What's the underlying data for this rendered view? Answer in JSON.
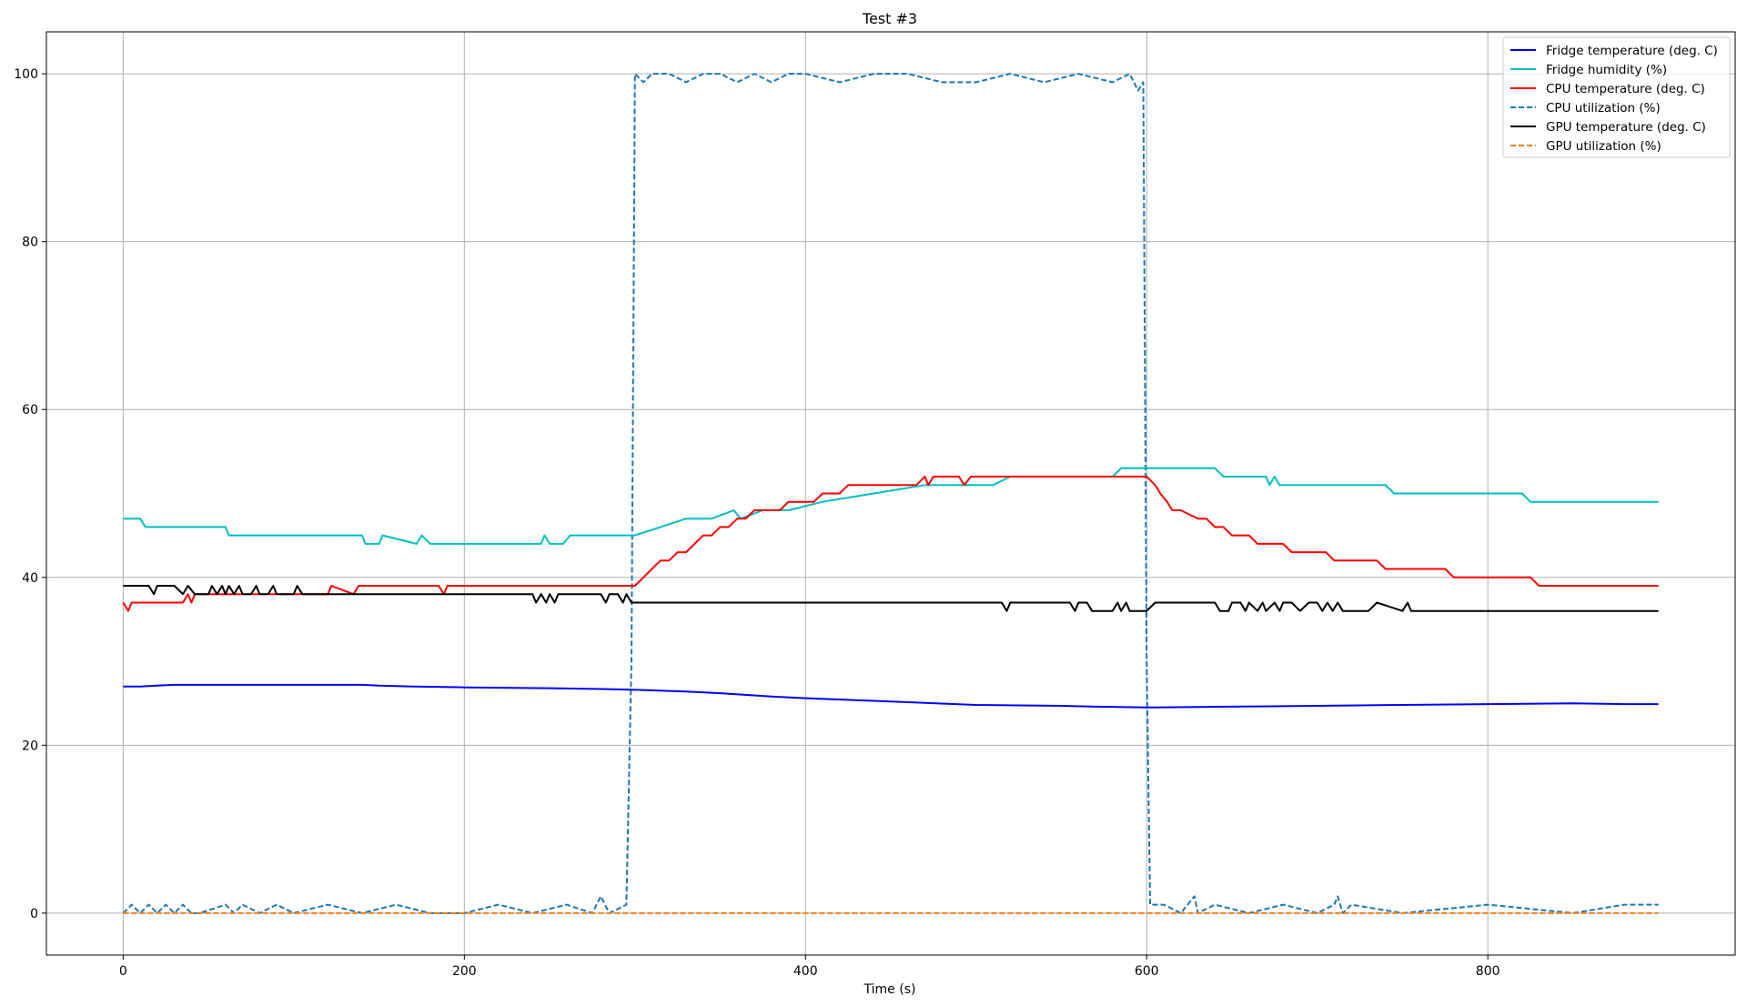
{
  "chart_data": {
    "type": "line",
    "title": "Test #3",
    "xlabel": "Time (s)",
    "ylabel": "",
    "xlim": [
      -45,
      945
    ],
    "ylim": [
      -5,
      105
    ],
    "xticks": [
      0,
      200,
      400,
      600,
      800
    ],
    "yticks": [
      0,
      20,
      40,
      60,
      80,
      100
    ],
    "grid": true,
    "legend_position": "top-right",
    "series": [
      {
        "name": "Fridge temperature (deg. C)",
        "color": "#0000ff",
        "dash": "solid",
        "x": [
          0,
          10,
          20,
          30,
          60,
          100,
          140,
          150,
          170,
          200,
          250,
          280,
          300,
          330,
          350,
          380,
          400,
          450,
          500,
          550,
          570,
          600,
          650,
          700,
          750,
          800,
          850,
          880,
          900
        ],
        "y": [
          27,
          27,
          27.1,
          27.2,
          27.2,
          27.2,
          27.2,
          27.1,
          27,
          26.9,
          26.8,
          26.7,
          26.6,
          26.4,
          26.2,
          25.8,
          25.6,
          25.2,
          24.8,
          24.7,
          24.6,
          24.5,
          24.6,
          24.7,
          24.8,
          24.9,
          25,
          24.9,
          24.9
        ]
      },
      {
        "name": "Fridge humidity (%)",
        "color": "#00bfbf",
        "dash": "solid",
        "x": [
          0,
          10,
          13,
          60,
          62,
          140,
          142,
          150,
          152,
          172,
          175,
          180,
          245,
          247,
          250,
          258,
          262,
          300,
          315,
          330,
          345,
          358,
          362,
          375,
          390,
          410,
          440,
          470,
          510,
          520,
          580,
          585,
          640,
          645,
          670,
          672,
          675,
          678,
          740,
          745,
          820,
          825,
          900
        ],
        "y": [
          47,
          47,
          46,
          46,
          45,
          45,
          44,
          44,
          45,
          44,
          45,
          44,
          44,
          45,
          44,
          44,
          45,
          45,
          46,
          47,
          47,
          48,
          47,
          48,
          48,
          49,
          50,
          51,
          51,
          52,
          52,
          53,
          53,
          52,
          52,
          51,
          52,
          51,
          51,
          50,
          50,
          49,
          49
        ]
      },
      {
        "name": "CPU temperature (deg. C)",
        "color": "#ff0000",
        "dash": "solid",
        "x": [
          0,
          3,
          5,
          35,
          38,
          40,
          42,
          120,
          122,
          135,
          138,
          140,
          160,
          162,
          185,
          188,
          190,
          300,
          305,
          310,
          315,
          320,
          325,
          330,
          335,
          340,
          345,
          350,
          355,
          360,
          365,
          370,
          375,
          380,
          385,
          390,
          395,
          400,
          405,
          410,
          415,
          420,
          425,
          430,
          465,
          470,
          472,
          475,
          480,
          490,
          493,
          497,
          500,
          600,
          605,
          608,
          612,
          615,
          620,
          630,
          635,
          640,
          645,
          650,
          660,
          665,
          680,
          685,
          705,
          710,
          735,
          740,
          775,
          780,
          825,
          830,
          900
        ],
        "y": [
          37,
          36,
          37,
          37,
          38,
          37,
          38,
          38,
          39,
          38,
          39,
          39,
          39,
          39,
          39,
          38,
          39,
          39,
          40,
          41,
          42,
          42,
          43,
          43,
          44,
          45,
          45,
          46,
          46,
          47,
          47,
          48,
          48,
          48,
          48,
          49,
          49,
          49,
          49,
          50,
          50,
          50,
          51,
          51,
          51,
          52,
          51,
          52,
          52,
          52,
          51,
          52,
          52,
          52,
          51,
          50,
          49,
          48,
          48,
          47,
          47,
          46,
          46,
          45,
          45,
          44,
          44,
          43,
          43,
          42,
          42,
          41,
          41,
          40,
          40,
          39,
          39
        ]
      },
      {
        "name": "CPU utilization (%)",
        "color": "#1f77b4",
        "dash": "dashed",
        "x": [
          0,
          5,
          10,
          15,
          20,
          25,
          30,
          35,
          40,
          45,
          60,
          65,
          70,
          80,
          90,
          100,
          120,
          140,
          160,
          180,
          200,
          220,
          240,
          260,
          275,
          280,
          285,
          295,
          298,
          300,
          305,
          310,
          320,
          330,
          340,
          350,
          360,
          370,
          380,
          390,
          400,
          420,
          440,
          460,
          480,
          500,
          520,
          540,
          560,
          580,
          590,
          595,
          598,
          600,
          602,
          610,
          620,
          628,
          630,
          640,
          660,
          680,
          700,
          710,
          712,
          715,
          720,
          750,
          800,
          850,
          880,
          900
        ],
        "y": [
          0,
          1,
          0,
          1,
          0,
          1,
          0,
          1,
          0,
          0,
          1,
          0,
          1,
          0,
          1,
          0,
          1,
          0,
          1,
          0,
          0,
          1,
          0,
          1,
          0,
          2,
          0,
          1,
          30,
          100,
          99,
          100,
          100,
          99,
          100,
          100,
          99,
          100,
          99,
          100,
          100,
          99,
          100,
          100,
          99,
          99,
          100,
          99,
          100,
          99,
          100,
          98,
          99,
          30,
          1,
          1,
          0,
          2,
          0,
          1,
          0,
          1,
          0,
          1,
          2,
          0,
          1,
          0,
          1,
          0,
          1,
          1
        ]
      },
      {
        "name": "GPU temperature (deg. C)",
        "color": "#000000",
        "dash": "solid",
        "x": [
          0,
          15,
          18,
          20,
          30,
          35,
          38,
          42,
          50,
          52,
          55,
          58,
          60,
          62,
          65,
          68,
          70,
          75,
          78,
          80,
          85,
          88,
          90,
          100,
          102,
          105,
          110,
          240,
          242,
          245,
          248,
          250,
          253,
          255,
          260,
          280,
          283,
          285,
          290,
          293,
          295,
          298,
          300,
          515,
          518,
          520,
          555,
          558,
          560,
          565,
          568,
          570,
          580,
          583,
          585,
          588,
          590,
          600,
          605,
          640,
          643,
          648,
          650,
          655,
          658,
          660,
          665,
          668,
          670,
          675,
          678,
          680,
          685,
          690,
          695,
          700,
          703,
          706,
          709,
          712,
          715,
          720,
          730,
          735,
          750,
          753,
          755,
          900
        ],
        "y": [
          39,
          39,
          38,
          39,
          39,
          38,
          39,
          38,
          38,
          39,
          38,
          39,
          38,
          39,
          38,
          39,
          38,
          38,
          39,
          38,
          38,
          39,
          38,
          38,
          39,
          38,
          38,
          38,
          37,
          38,
          37,
          38,
          37,
          38,
          38,
          38,
          37,
          38,
          38,
          37,
          38,
          37,
          37,
          37,
          36,
          37,
          37,
          36,
          37,
          37,
          36,
          36,
          36,
          37,
          36,
          37,
          36,
          36,
          37,
          37,
          36,
          36,
          37,
          37,
          36,
          37,
          36,
          37,
          36,
          37,
          36,
          37,
          37,
          36,
          37,
          37,
          36,
          37,
          36,
          37,
          36,
          36,
          36,
          37,
          36,
          37,
          36,
          36
        ]
      },
      {
        "name": "GPU utilization (%)",
        "color": "#ff7f0e",
        "dash": "dashed",
        "x": [
          0,
          900
        ],
        "y": [
          0,
          0
        ]
      }
    ]
  }
}
